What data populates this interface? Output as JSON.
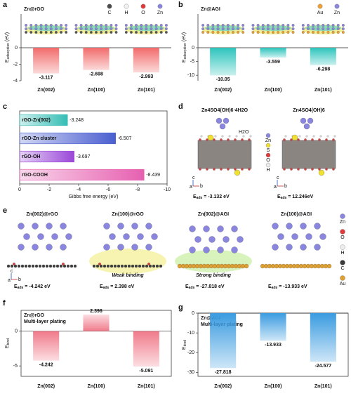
{
  "chart_data": [
    {
      "label": "a",
      "type": "bar",
      "title": "Zn@rGO",
      "ylabel": [
        "E",
        "adsorption",
        " (eV)"
      ],
      "categories": [
        "Zn(002)",
        "Zn(100)",
        "Zn(101)"
      ],
      "values": [
        -3.117,
        -2.698,
        -2.993
      ],
      "color": "#f26b6b",
      "ylim": [
        -4,
        0
      ],
      "yticks": [
        0,
        -2,
        -4
      ],
      "legend": [
        {
          "name": "C",
          "color": "#4a4a4a"
        },
        {
          "name": "H",
          "color": "#f2f2f2"
        },
        {
          "name": "O",
          "color": "#e03a3a"
        },
        {
          "name": "Zn",
          "color": "#8a86e0"
        }
      ]
    },
    {
      "label": "b",
      "type": "bar",
      "title": "Zn@AGI",
      "ylabel": [
        "E",
        "adsorption",
        " (eV)"
      ],
      "categories": [
        "Zn(002)",
        "Zn(100)",
        "Zn(101)"
      ],
      "values": [
        -10.05,
        -3.559,
        -6.298
      ],
      "color": "#2cc4bc",
      "ylim": [
        -12,
        0
      ],
      "yticks": [
        0,
        -5,
        -10
      ],
      "legend": [
        {
          "name": "Au",
          "color": "#f0a030"
        },
        {
          "name": "Zn",
          "color": "#8a86e0"
        }
      ]
    },
    {
      "label": "c",
      "type": "bar",
      "orientation": "horizontal",
      "xlabel": "Gibbs free energy (eV)",
      "categories": [
        "rGO-Zn(002)",
        "rGO-Zn cluster",
        "rGO-OH",
        "rGO-COOH"
      ],
      "values": [
        -3.248,
        -6.507,
        -3.697,
        -8.439
      ],
      "colors": [
        "#34bdb4",
        "#4a5fd0",
        "#9a48d8",
        "#e660b0"
      ],
      "xlim": [
        0,
        -10
      ],
      "xticks": [
        0,
        -2,
        -4,
        -6,
        -8,
        -10
      ]
    },
    {
      "label": "f",
      "type": "bar",
      "title": "Zn@rGO",
      "subtitle": "Multi-layer plating",
      "ylabel": [
        "E",
        "bind",
        ""
      ],
      "categories": [
        "Zn(002)",
        "Zn(100)",
        "Zn(101)"
      ],
      "values": [
        -4.242,
        2.398,
        -5.091
      ],
      "color": "#f07a8a",
      "ylim": [
        -6.5,
        3
      ],
      "yticks": [
        0,
        -5
      ]
    },
    {
      "label": "g",
      "type": "bar",
      "title": "Zn@AGI",
      "subtitle": "Multi-layer plating",
      "ylabel": [
        "E",
        "bind",
        ""
      ],
      "categories": [
        "Zn(002)",
        "Zn(100)",
        "Zn(101)"
      ],
      "values": [
        -27.818,
        -13.933,
        -24.577
      ],
      "color": "#3a9be0",
      "ylim": [
        -32,
        0
      ],
      "yticks": [
        0,
        -10,
        -20,
        -30
      ]
    }
  ],
  "panel_d": {
    "label": "d",
    "titles": [
      "Zn4SO4(OH)6·4H2O",
      "Zn4SO4(OH)6"
    ],
    "water": "H2O",
    "legend": [
      "Zn",
      "S",
      "O",
      "H"
    ],
    "energies": [
      [
        "E",
        "ads",
        " = -3.132 eV"
      ],
      [
        "E",
        "ads",
        " = 12.246eV"
      ]
    ],
    "axes": [
      "c",
      "a",
      "b"
    ]
  },
  "panel_e": {
    "label": "e",
    "titles": [
      "Zn(002)@rGO",
      "Zn(100)@rGO",
      "Zn(002)@AGI",
      "Zn(100)@AGI"
    ],
    "annotations": [
      "Weak binding",
      "Strong binding"
    ],
    "energies": [
      [
        "E",
        "ads",
        " = -4.242 eV"
      ],
      [
        "E",
        "ads",
        " = 2.398 eV"
      ],
      [
        "E",
        "ads",
        " = -27.818 eV"
      ],
      [
        "E",
        "ads",
        " = -13.933 eV"
      ]
    ],
    "legend": [
      "Zn",
      "O",
      "H",
      "C",
      "Au"
    ],
    "axes": [
      "c",
      "a",
      "b"
    ]
  }
}
